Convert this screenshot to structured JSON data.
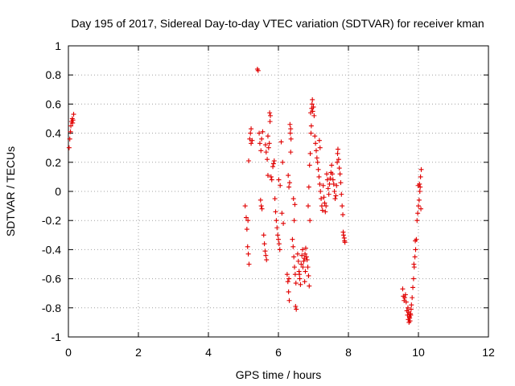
{
  "chart_data": {
    "type": "scatter",
    "title": "Day 195 of 2017, Sidereal Day-to-day VTEC variation (SDTVAR) for receiver kman",
    "xlabel": "GPS time / hours",
    "ylabel": "SDTVAR / TECUs",
    "xlim": [
      0,
      12
    ],
    "ylim": [
      -1,
      1
    ],
    "xticks": [
      "0",
      "2",
      "4",
      "6",
      "8",
      "10",
      "12"
    ],
    "yticks": [
      "-1",
      "-0.8",
      "-0.6",
      "-0.4",
      "-0.2",
      "0",
      "0.2",
      "0.4",
      "0.6",
      "0.8",
      "1"
    ],
    "grid": true,
    "marker": "plus",
    "color": "#e00000",
    "series": [
      {
        "name": "SDTVAR",
        "points": [
          [
            0.02,
            0.3
          ],
          [
            0.04,
            0.36
          ],
          [
            0.06,
            0.41
          ],
          [
            0.07,
            0.45
          ],
          [
            0.09,
            0.48
          ],
          [
            0.11,
            0.5
          ],
          [
            0.13,
            0.49
          ],
          [
            0.15,
            0.53
          ],
          [
            0.12,
            0.47
          ],
          [
            5.05,
            -0.1
          ],
          [
            5.08,
            -0.18
          ],
          [
            5.1,
            -0.26
          ],
          [
            5.12,
            -0.38
          ],
          [
            5.14,
            -0.43
          ],
          [
            5.16,
            -0.5
          ],
          [
            5.13,
            -0.2
          ],
          [
            5.15,
            0.21
          ],
          [
            5.18,
            0.36
          ],
          [
            5.2,
            0.4
          ],
          [
            5.22,
            0.43
          ],
          [
            5.25,
            0.35
          ],
          [
            5.22,
            0.33
          ],
          [
            5.4,
            0.84
          ],
          [
            5.42,
            0.83
          ],
          [
            5.45,
            0.4
          ],
          [
            5.47,
            0.33
          ],
          [
            5.5,
            0.28
          ],
          [
            5.49,
            -0.06
          ],
          [
            5.51,
            -0.1
          ],
          [
            5.53,
            -0.12
          ],
          [
            5.52,
            0.36
          ],
          [
            5.55,
            0.41
          ],
          [
            5.58,
            -0.3
          ],
          [
            5.6,
            -0.36
          ],
          [
            5.62,
            -0.41
          ],
          [
            5.64,
            -0.44
          ],
          [
            5.66,
            -0.47
          ],
          [
            5.63,
            0.32
          ],
          [
            5.65,
            0.27
          ],
          [
            5.68,
            0.22
          ],
          [
            5.7,
            0.11
          ],
          [
            5.72,
            0.3
          ],
          [
            5.74,
            0.33
          ],
          [
            5.7,
            0.38
          ],
          [
            5.75,
            0.54
          ],
          [
            5.77,
            0.52
          ],
          [
            5.76,
            0.48
          ],
          [
            5.79,
            0.1
          ],
          [
            5.81,
            0.08
          ],
          [
            5.84,
            0.17
          ],
          [
            5.86,
            0.19
          ],
          [
            5.88,
            0.21
          ],
          [
            5.9,
            -0.05
          ],
          [
            5.92,
            -0.14
          ],
          [
            5.94,
            -0.2
          ],
          [
            5.96,
            -0.25
          ],
          [
            5.98,
            -0.3
          ],
          [
            6.0,
            -0.33
          ],
          [
            6.02,
            -0.36
          ],
          [
            6.04,
            -0.4
          ],
          [
            6.01,
            0.08
          ],
          [
            6.05,
            0.04
          ],
          [
            6.08,
            0.34
          ],
          [
            6.12,
            0.2
          ],
          [
            6.1,
            -0.15
          ],
          [
            6.14,
            -0.22
          ],
          [
            6.25,
            -0.57
          ],
          [
            6.27,
            -0.62
          ],
          [
            6.29,
            -0.69
          ],
          [
            6.31,
            -0.75
          ],
          [
            6.3,
            -0.6
          ],
          [
            6.28,
            0.11
          ],
          [
            6.32,
            0.06
          ],
          [
            6.3,
            0.03
          ],
          [
            6.33,
            0.46
          ],
          [
            6.35,
            0.43
          ],
          [
            6.34,
            0.4
          ],
          [
            6.36,
            0.36
          ],
          [
            6.35,
            0.27
          ],
          [
            6.4,
            -0.33
          ],
          [
            6.42,
            -0.38
          ],
          [
            6.44,
            -0.45
          ],
          [
            6.46,
            -0.52
          ],
          [
            6.48,
            -0.57
          ],
          [
            6.5,
            -0.63
          ],
          [
            6.49,
            -0.79
          ],
          [
            6.51,
            -0.81
          ],
          [
            6.45,
            -0.2
          ],
          [
            6.47,
            -0.09
          ],
          [
            6.43,
            -0.05
          ],
          [
            6.55,
            -0.43
          ],
          [
            6.57,
            -0.48
          ],
          [
            6.59,
            -0.55
          ],
          [
            6.61,
            -0.6
          ],
          [
            6.63,
            -0.64
          ],
          [
            6.6,
            -0.57
          ],
          [
            6.65,
            -0.5
          ],
          [
            6.67,
            -0.44
          ],
          [
            6.69,
            -0.4
          ],
          [
            6.7,
            -0.52
          ],
          [
            6.72,
            -0.48
          ],
          [
            6.74,
            -0.46
          ],
          [
            6.76,
            -0.43
          ],
          [
            6.78,
            -0.39
          ],
          [
            6.8,
            -0.45
          ],
          [
            6.82,
            -0.47
          ],
          [
            6.84,
            -0.52
          ],
          [
            6.86,
            -0.58
          ],
          [
            6.88,
            -0.65
          ],
          [
            6.75,
            -0.62
          ],
          [
            6.77,
            -0.55
          ],
          [
            6.85,
            -0.1
          ],
          [
            6.87,
            0.03
          ],
          [
            6.9,
            -0.2
          ],
          [
            6.89,
            0.18
          ],
          [
            6.91,
            0.26
          ],
          [
            6.93,
            0.4
          ],
          [
            6.94,
            0.45
          ],
          [
            6.92,
            0.54
          ],
          [
            6.95,
            0.57
          ],
          [
            6.96,
            0.6
          ],
          [
            6.97,
            0.63
          ],
          [
            6.98,
            0.55
          ],
          [
            7.0,
            0.58
          ],
          [
            7.02,
            0.52
          ],
          [
            7.04,
            0.38
          ],
          [
            7.06,
            0.33
          ],
          [
            7.08,
            0.28
          ],
          [
            7.1,
            0.23
          ],
          [
            7.12,
            0.2
          ],
          [
            7.14,
            0.15
          ],
          [
            7.16,
            0.1
          ],
          [
            7.18,
            0.05
          ],
          [
            7.2,
            0.0
          ],
          [
            7.22,
            -0.05
          ],
          [
            7.24,
            -0.1
          ],
          [
            7.26,
            -0.13
          ],
          [
            7.17,
            0.35
          ],
          [
            7.19,
            0.3
          ],
          [
            7.28,
            0.04
          ],
          [
            7.3,
            -0.04
          ],
          [
            7.32,
            -0.08
          ],
          [
            7.34,
            -0.14
          ],
          [
            7.36,
            -0.1
          ],
          [
            7.38,
            0.12
          ],
          [
            7.4,
            0.08
          ],
          [
            7.42,
            0.02
          ],
          [
            7.44,
            -0.02
          ],
          [
            7.46,
            0.05
          ],
          [
            7.48,
            0.09
          ],
          [
            7.5,
            0.13
          ],
          [
            7.52,
            0.18
          ],
          [
            7.54,
            0.12
          ],
          [
            7.56,
            0.08
          ],
          [
            7.58,
            0.05
          ],
          [
            7.6,
            0.0
          ],
          [
            7.62,
            -0.05
          ],
          [
            7.64,
            -0.03
          ],
          [
            7.66,
            0.04
          ],
          [
            7.68,
            0.2
          ],
          [
            7.69,
            0.26
          ],
          [
            7.7,
            0.29
          ],
          [
            7.72,
            0.22
          ],
          [
            7.74,
            0.16
          ],
          [
            7.76,
            0.12
          ],
          [
            7.78,
            0.06
          ],
          [
            7.8,
            -0.02
          ],
          [
            7.82,
            -0.1
          ],
          [
            7.84,
            -0.16
          ],
          [
            7.86,
            -0.3
          ],
          [
            7.88,
            -0.32
          ],
          [
            7.9,
            -0.35
          ],
          [
            7.85,
            -0.28
          ],
          [
            7.89,
            -0.34
          ],
          [
            9.55,
            -0.67
          ],
          [
            9.57,
            -0.72
          ],
          [
            9.59,
            -0.75
          ],
          [
            9.61,
            -0.73
          ],
          [
            9.63,
            -0.71
          ],
          [
            9.65,
            -0.76
          ],
          [
            9.67,
            -0.82
          ],
          [
            9.69,
            -0.85
          ],
          [
            9.71,
            -0.88
          ],
          [
            9.73,
            -0.9
          ],
          [
            9.75,
            -0.87
          ],
          [
            9.77,
            -0.84
          ],
          [
            9.79,
            -0.81
          ],
          [
            9.7,
            -0.8
          ],
          [
            9.72,
            -0.83
          ],
          [
            9.74,
            -0.86
          ],
          [
            9.76,
            -0.89
          ],
          [
            9.78,
            -0.85
          ],
          [
            9.8,
            -0.78
          ],
          [
            9.82,
            -0.73
          ],
          [
            9.84,
            -0.66
          ],
          [
            9.86,
            -0.6
          ],
          [
            9.88,
            -0.52
          ],
          [
            9.9,
            -0.45
          ],
          [
            9.87,
            -0.5
          ],
          [
            9.92,
            -0.4
          ],
          [
            9.94,
            -0.33
          ],
          [
            9.91,
            -0.34
          ],
          [
            9.96,
            -0.2
          ],
          [
            9.98,
            -0.15
          ],
          [
            10.0,
            -0.1
          ],
          [
            10.02,
            -0.06
          ],
          [
            10.04,
            0.0
          ],
          [
            9.99,
            0.04
          ],
          [
            10.03,
            0.05
          ],
          [
            10.05,
            0.03
          ],
          [
            10.06,
            0.1
          ],
          [
            10.08,
            0.15
          ],
          [
            10.07,
            -0.12
          ]
        ]
      }
    ]
  }
}
